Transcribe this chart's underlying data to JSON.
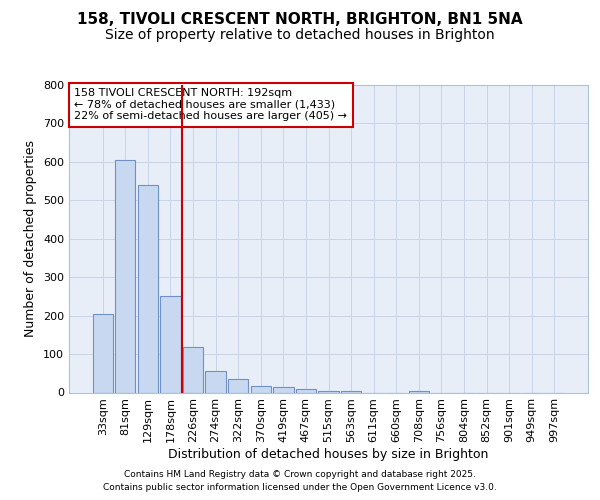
{
  "title_line1": "158, TIVOLI CRESCENT NORTH, BRIGHTON, BN1 5NA",
  "title_line2": "Size of property relative to detached houses in Brighton",
  "xlabel": "Distribution of detached houses by size in Brighton",
  "ylabel": "Number of detached properties",
  "categories": [
    "33sqm",
    "81sqm",
    "129sqm",
    "178sqm",
    "226sqm",
    "274sqm",
    "322sqm",
    "370sqm",
    "419sqm",
    "467sqm",
    "515sqm",
    "563sqm",
    "611sqm",
    "660sqm",
    "708sqm",
    "756sqm",
    "804sqm",
    "852sqm",
    "901sqm",
    "949sqm",
    "997sqm"
  ],
  "values": [
    203,
    604,
    541,
    252,
    119,
    55,
    35,
    18,
    15,
    10,
    5,
    5,
    0,
    0,
    3,
    0,
    0,
    0,
    0,
    0,
    0
  ],
  "bar_color": "#c8d8f0",
  "bar_edge_color": "#7090c8",
  "vline_x": 3.5,
  "vline_color": "#cc0000",
  "annotation_line1": "158 TIVOLI CRESCENT NORTH: 192sqm",
  "annotation_line2": "← 78% of detached houses are smaller (1,433)",
  "annotation_line3": "22% of semi-detached houses are larger (405) →",
  "annotation_box_facecolor": "#ffffff",
  "annotation_box_edgecolor": "#cc0000",
  "grid_color": "#c8d4e8",
  "background_color": "#ffffff",
  "plot_bg_color": "#e8eef8",
  "ylim": [
    0,
    800
  ],
  "yticks": [
    0,
    100,
    200,
    300,
    400,
    500,
    600,
    700,
    800
  ],
  "title_fontsize": 11,
  "subtitle_fontsize": 10,
  "axis_label_fontsize": 9,
  "tick_fontsize": 8,
  "annotation_fontsize": 8,
  "footer_fontsize": 6.5,
  "footer_line1": "Contains HM Land Registry data © Crown copyright and database right 2025.",
  "footer_line2": "Contains public sector information licensed under the Open Government Licence v3.0."
}
